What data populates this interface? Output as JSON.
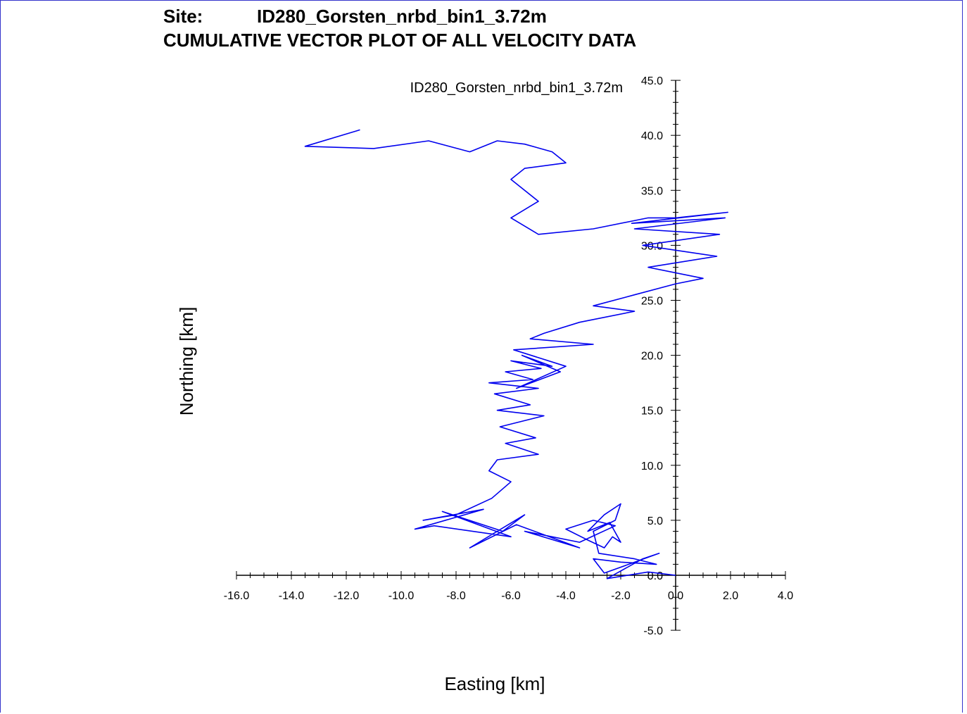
{
  "header": {
    "site_label": "Site:",
    "site_name": "ID280_Gorsten_nrbd_bin1_3.72m",
    "plot_title": "CUMULATIVE VECTOR PLOT OF ALL VELOCITY DATA"
  },
  "colors": {
    "series": "#0000ee",
    "axis": "#000000",
    "frame": "#3333cc"
  },
  "chart_data": {
    "type": "line",
    "title": "ID280_Gorsten_nrbd_bin1_3.72m",
    "xlabel": "Easting [km]",
    "ylabel": "Northing [km]",
    "xlim": [
      -16,
      4
    ],
    "ylim": [
      -5,
      45
    ],
    "x_ticks": [
      -16,
      -14,
      -12,
      -10,
      -8,
      -6,
      -4,
      -2,
      0,
      2,
      4
    ],
    "y_ticks": [
      -5,
      5,
      10,
      15,
      20,
      25,
      30,
      35,
      40,
      45
    ],
    "x_tick_labels": [
      "-16.0",
      "-14.0",
      "-12.0",
      "-10.0",
      "-8.0",
      "-6.0",
      "-4.0",
      "-2.0",
      "0.0",
      "2.0",
      "4.0"
    ],
    "y_tick_labels": [
      "-5.0",
      "5.0",
      "10.0",
      "15.0",
      "20.0",
      "25.0",
      "30.0",
      "35.0",
      "40.0",
      "45.0"
    ],
    "origin_label": "0.0",
    "grid": false,
    "series": [
      {
        "name": "ID280_Gorsten_nrbd_bin1_3.72m",
        "x": [
          0.0,
          -1.0,
          -2.5,
          -1.2,
          -0.6,
          -2.6,
          -3.0,
          -2.0,
          -0.7,
          -1.5,
          -2.8,
          -3.0,
          -2.2,
          -2.0,
          -2.6,
          -3.2,
          -2.4,
          -2.0,
          -2.3,
          -2.6,
          -3.2,
          -4.0,
          -3.0,
          -2.2,
          -3.5,
          -5.5,
          -3.5,
          -5.8,
          -7.5,
          -5.5,
          -6.3,
          -8.5,
          -6.0,
          -8.8,
          -9.5,
          -7.0,
          -9.2,
          -8.0,
          -6.7,
          -6.0,
          -6.8,
          -6.5,
          -5.0,
          -6.2,
          -5.1,
          -6.4,
          -4.8,
          -6.5,
          -5.3,
          -6.6,
          -5.0,
          -6.8,
          -5.2,
          -6.2,
          -4.9,
          -6.0,
          -4.5,
          -5.6,
          -4.2,
          -5.8,
          -4.0,
          -5.9,
          -3.0,
          -5.3,
          -4.8,
          -3.5,
          -1.5,
          -3.0,
          -1.5,
          0.0,
          1.0,
          -1.0,
          1.5,
          -1.2,
          1.6,
          -1.5,
          1.8,
          -1.6,
          1.9,
          0.0,
          -1.0,
          -3.0,
          -5.0,
          -6.0,
          -5.0,
          -6.0,
          -5.5,
          -4.0,
          -4.5,
          -5.5,
          -6.5,
          -7.5,
          -9.0,
          -11.0,
          -13.5,
          -11.5
        ],
        "y": [
          0.0,
          0.3,
          -0.3,
          1.5,
          2.0,
          0.2,
          1.5,
          1.2,
          1.0,
          1.5,
          2.0,
          4.0,
          5.0,
          6.5,
          5.5,
          4.0,
          4.8,
          3.0,
          3.5,
          2.5,
          3.2,
          4.2,
          5.0,
          4.5,
          3.0,
          4.0,
          2.5,
          4.6,
          2.5,
          5.5,
          4.0,
          5.8,
          3.5,
          4.5,
          4.2,
          6.0,
          5.0,
          5.5,
          7.0,
          8.5,
          9.5,
          10.5,
          11.0,
          12.0,
          12.5,
          13.5,
          14.5,
          15.0,
          15.5,
          16.5,
          17.0,
          17.5,
          17.8,
          18.5,
          18.8,
          19.5,
          19.0,
          20.0,
          18.5,
          17.0,
          19.0,
          20.5,
          21.0,
          21.5,
          22.0,
          23.0,
          24.0,
          24.5,
          25.5,
          26.5,
          27.0,
          28.0,
          29.0,
          30.0,
          31.0,
          31.5,
          32.5,
          32.0,
          33.0,
          32.5,
          32.5,
          31.5,
          31.0,
          32.5,
          34.0,
          36.0,
          37.0,
          37.5,
          38.5,
          39.2,
          39.5,
          38.5,
          39.5,
          38.8,
          39.0,
          40.5
        ]
      }
    ]
  }
}
